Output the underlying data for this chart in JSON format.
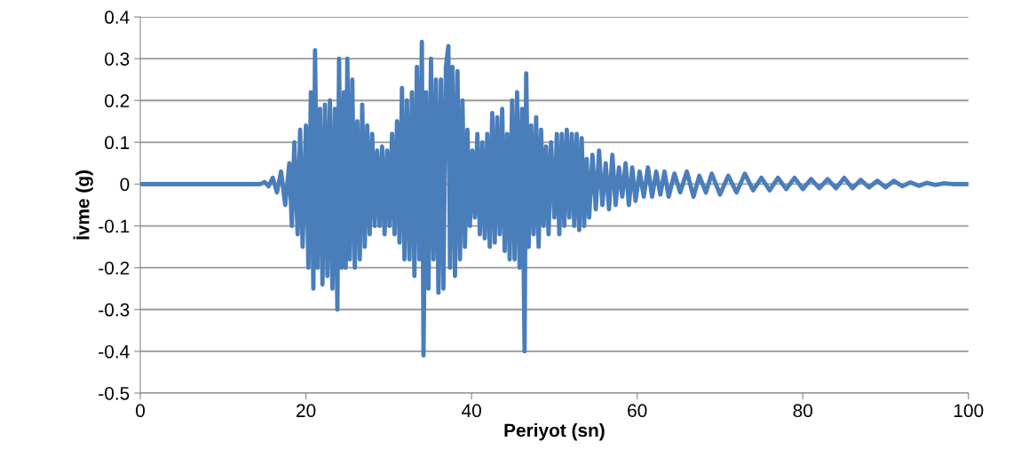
{
  "chart_data": {
    "type": "line",
    "xlabel": "Periyot (sn)",
    "ylabel": "İvme (g)",
    "xlim": [
      0,
      100
    ],
    "xticks": [
      0,
      20,
      40,
      60,
      80,
      100
    ],
    "ylim": [
      -0.5,
      0.4
    ],
    "yticks": [
      -0.5,
      -0.4,
      -0.3,
      -0.2,
      -0.1,
      0,
      0.1,
      0.2,
      0.3,
      0.4
    ],
    "grid": "y",
    "legend": false,
    "marker": "none",
    "line_style": "solid",
    "series": [
      {
        "color": "#4a7ebb",
        "x": [
          0,
          5,
          10,
          14.5,
          15,
          15.5,
          16,
          16.5,
          17,
          17.5,
          18,
          18.3,
          18.6,
          19,
          19.3,
          19.6,
          20,
          20.3,
          20.6,
          20.9,
          21.1,
          21.4,
          21.7,
          22,
          22.3,
          22.6,
          22.9,
          23.2,
          23.5,
          23.8,
          24.0,
          24.3,
          24.6,
          24.8,
          25.0,
          25.3,
          25.6,
          25.9,
          26.2,
          26.5,
          26.8,
          27.1,
          27.4,
          27.7,
          28,
          28.3,
          28.6,
          28.9,
          29.2,
          29.5,
          29.8,
          30.1,
          30.4,
          30.7,
          31,
          31.3,
          31.6,
          31.9,
          32.2,
          32.5,
          32.8,
          33.1,
          33.4,
          33.7,
          34.0,
          34.2,
          34.5,
          34.8,
          35.1,
          35.4,
          35.7,
          36,
          36.3,
          36.6,
          36.9,
          37.2,
          37.4,
          37.7,
          38,
          38.3,
          38.6,
          38.9,
          39.2,
          39.5,
          39.8,
          40.1,
          40.4,
          40.7,
          41,
          41.3,
          41.6,
          41.9,
          42.2,
          42.5,
          42.8,
          43.1,
          43.4,
          43.7,
          44,
          44.3,
          44.6,
          44.9,
          45.2,
          45.5,
          45.8,
          46.1,
          46.4,
          46.6,
          46.9,
          47.2,
          47.5,
          47.8,
          48.1,
          48.4,
          48.7,
          49,
          49.3,
          49.6,
          50,
          50.3,
          50.6,
          50.9,
          51.2,
          51.5,
          51.8,
          52.1,
          52.4,
          52.7,
          53,
          53.3,
          53.6,
          53.9,
          54.2,
          54.6,
          55,
          55.4,
          55.8,
          56.2,
          56.6,
          57,
          57.4,
          57.8,
          58.2,
          58.6,
          59,
          59.4,
          59.8,
          60.3,
          60.8,
          61.3,
          61.8,
          62.3,
          62.8,
          63.3,
          63.8,
          64.5,
          65.2,
          66,
          66.8,
          67.5,
          68.3,
          69,
          70,
          71,
          72,
          73,
          74,
          75,
          76,
          77,
          78,
          79,
          80,
          81,
          82,
          83,
          84,
          85,
          86,
          87,
          88,
          89,
          90,
          91,
          92,
          93,
          94,
          95,
          96,
          97,
          98,
          100
        ],
        "values": [
          0,
          0,
          0,
          0,
          0.005,
          -0.005,
          0.015,
          -0.02,
          0.03,
          -0.05,
          0.05,
          -0.1,
          0.1,
          -0.12,
          0.13,
          -0.15,
          0.14,
          -0.2,
          0.22,
          -0.25,
          0.32,
          -0.2,
          0.18,
          -0.24,
          0.19,
          -0.22,
          0.2,
          -0.25,
          0.18,
          -0.3,
          0.3,
          -0.2,
          0.22,
          -0.2,
          0.3,
          -0.18,
          0.25,
          -0.2,
          0.15,
          -0.18,
          0.19,
          -0.15,
          0.14,
          -0.12,
          0.12,
          -0.1,
          0.08,
          -0.1,
          0.09,
          -0.12,
          0.08,
          -0.1,
          0.12,
          -0.12,
          0.15,
          -0.14,
          0.23,
          -0.18,
          0.2,
          -0.18,
          0.22,
          -0.22,
          0.28,
          -0.18,
          0.34,
          -0.41,
          0.22,
          -0.25,
          0.3,
          -0.18,
          0.25,
          -0.26,
          0.25,
          -0.25,
          0.28,
          0.33,
          -0.2,
          0.28,
          -0.22,
          0.27,
          -0.18,
          0.2,
          -0.15,
          0.13,
          -0.1,
          0.08,
          -0.08,
          0.12,
          -0.12,
          0.1,
          -0.13,
          0.12,
          -0.15,
          0.17,
          -0.14,
          0.16,
          -0.12,
          0.18,
          -0.16,
          0.12,
          -0.18,
          0.2,
          -0.18,
          0.22,
          -0.2,
          0.18,
          -0.4,
          0.265,
          -0.15,
          0.14,
          -0.12,
          0.16,
          -0.15,
          0.13,
          -0.1,
          0.09,
          -0.12,
          0.1,
          -0.08,
          0.12,
          -0.12,
          0.12,
          -0.1,
          0.13,
          -0.08,
          0.12,
          -0.1,
          0.12,
          -0.11,
          0.11,
          -0.1,
          0.06,
          -0.08,
          0.07,
          -0.06,
          0.08,
          -0.05,
          0.05,
          -0.06,
          0.07,
          -0.05,
          0.04,
          -0.03,
          0.05,
          -0.05,
          0.04,
          -0.04,
          0.03,
          -0.03,
          0.04,
          -0.03,
          0.03,
          -0.025,
          0.03,
          -0.03,
          0.025,
          -0.02,
          0.03,
          -0.03,
          0.02,
          -0.02,
          0.025,
          -0.025,
          0.02,
          -0.02,
          0.025,
          -0.015,
          0.015,
          -0.015,
          0.015,
          -0.012,
          0.015,
          -0.012,
          0.012,
          -0.01,
          0.012,
          -0.01,
          0.015,
          -0.01,
          0.01,
          -0.008,
          0.008,
          -0.008,
          0.008,
          -0.005,
          0.004,
          -0.004,
          0.003,
          -0.002,
          0.002,
          0,
          0
        ]
      }
    ]
  }
}
